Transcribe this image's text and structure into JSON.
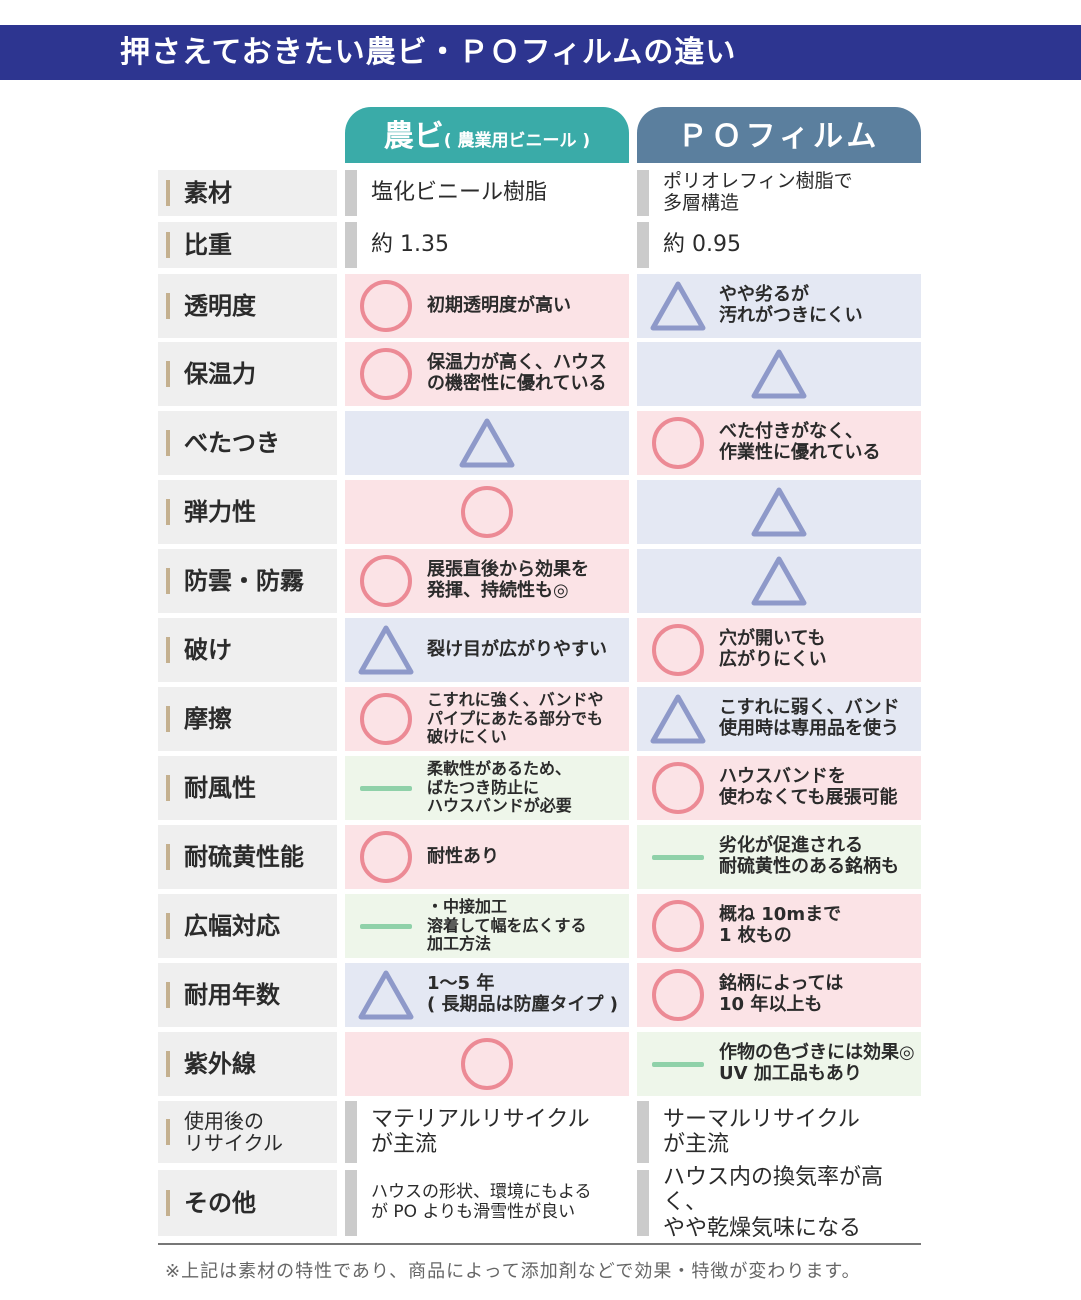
{
  "title": "押さえておきたい農ビ・ＰＯフィルムの違い",
  "columns": {
    "col1": "農ビ",
    "col1_sub": "( 農業用ビニール )",
    "col2": "ＰＯフィルム"
  },
  "colors": {
    "title_bar": "#2d3590",
    "col1": "#3aaba8",
    "col2": "#5b7f9e",
    "circle": "#ec8a95",
    "triangle": "#8e99c9",
    "dash": "#8fd1a9"
  },
  "rows": [
    {
      "label": "素材",
      "c1": {
        "symbol": "none",
        "text": "塩化ビニール樹脂"
      },
      "c2": {
        "symbol": "none",
        "text": "ポリオレフィン樹脂で\n多層構造"
      }
    },
    {
      "label": "比重",
      "c1": {
        "symbol": "none",
        "text": "約 1.35"
      },
      "c2": {
        "symbol": "none",
        "text": "約 0.95"
      }
    },
    {
      "label": "透明度",
      "c1": {
        "symbol": "circle",
        "text": "初期透明度が高い"
      },
      "c2": {
        "symbol": "triangle",
        "text": "やや劣るが\n汚れがつきにくい"
      }
    },
    {
      "label": "保温力",
      "c1": {
        "symbol": "circle",
        "text": "保温力が高く、ハウス\nの機密性に優れている"
      },
      "c2": {
        "symbol": "triangle",
        "text": ""
      }
    },
    {
      "label": "べたつき",
      "c1": {
        "symbol": "triangle",
        "text": ""
      },
      "c2": {
        "symbol": "circle",
        "text": "べた付きがなく、\n作業性に優れている"
      }
    },
    {
      "label": "弾力性",
      "c1": {
        "symbol": "circle",
        "text": ""
      },
      "c2": {
        "symbol": "triangle",
        "text": ""
      }
    },
    {
      "label": "防雲・防霧",
      "c1": {
        "symbol": "circle",
        "text": "展張直後から効果を\n発揮、持続性も◎"
      },
      "c2": {
        "symbol": "triangle",
        "text": ""
      }
    },
    {
      "label": "破け",
      "c1": {
        "symbol": "triangle",
        "text": "裂け目が広がりやすい"
      },
      "c2": {
        "symbol": "circle",
        "text": "穴が開いても\n広がりにくい"
      }
    },
    {
      "label": "摩擦",
      "c1": {
        "symbol": "circle",
        "text": "こすれに強く、バンドや\nパイプにあたる部分でも\n破けにくい"
      },
      "c2": {
        "symbol": "triangle",
        "text": "こすれに弱く、バンド\n使用時は専用品を使う"
      }
    },
    {
      "label": "耐風性",
      "c1": {
        "symbol": "dash",
        "text": "柔軟性があるため、\nばたつき防止に\nハウスバンドが必要"
      },
      "c2": {
        "symbol": "circle",
        "text": "ハウスバンドを\n使わなくても展張可能"
      }
    },
    {
      "label": "耐硫黄性能",
      "c1": {
        "symbol": "circle",
        "text": "耐性あり"
      },
      "c2": {
        "symbol": "dash",
        "text": "劣化が促進される\n耐硫黄性のある銘柄も"
      }
    },
    {
      "label": "広幅対応",
      "c1": {
        "symbol": "dash",
        "text": "・中接加工\n溶着して幅を広くする\n加工方法"
      },
      "c2": {
        "symbol": "circle",
        "text": "概ね 10mまで\n1 枚もの"
      }
    },
    {
      "label": "耐用年数",
      "c1": {
        "symbol": "triangle",
        "text": "1～5 年\n( 長期品は防塵タイプ )"
      },
      "c2": {
        "symbol": "circle",
        "text": "銘柄によっては\n10 年以上も"
      }
    },
    {
      "label": "紫外線",
      "c1": {
        "symbol": "circle",
        "text": ""
      },
      "c2": {
        "symbol": "dash",
        "text": "作物の色づきには効果◎\nUV 加工品もあり"
      }
    },
    {
      "label": "使用後の\nリサイクル",
      "c1": {
        "symbol": "none",
        "text": "マテリアルリサイクル\nが主流"
      },
      "c2": {
        "symbol": "none",
        "text": "サーマルリサイクル\nが主流"
      }
    },
    {
      "label": "その他",
      "c1": {
        "symbol": "none",
        "text": "ハウスの形状、環境にもよる\nが PO よりも滑雪性が良い"
      },
      "c2": {
        "symbol": "none",
        "text": "ハウス内の換気率が高く、\nやや乾燥気味になる"
      }
    }
  ],
  "footnote": "※上記は素材の特性であり、商品によって添加剤などで効果・特徴が変わります。"
}
